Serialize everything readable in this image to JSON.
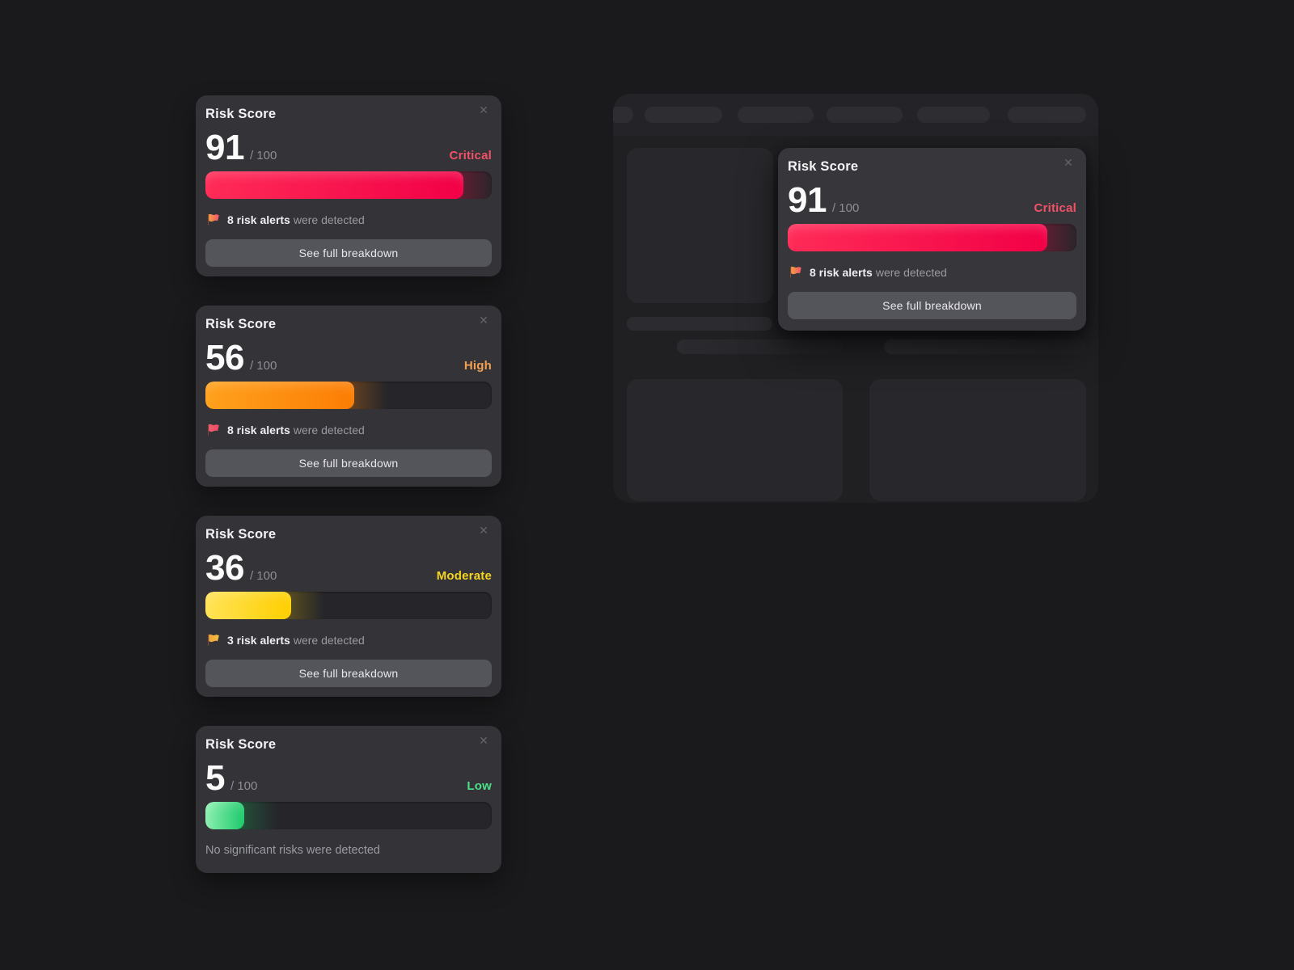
{
  "cards": [
    {
      "title": "Risk Score",
      "close": "✕",
      "score": "91",
      "denominator": "/ 100",
      "severity": "Critical",
      "severity_color": "#f25268",
      "bar": {
        "fill_percent": 90,
        "gradient": [
          "#ff2b57",
          "#f20046"
        ],
        "glow": "rgba(244,10,70,0.32)"
      },
      "alert": {
        "flag_colors": [
          "#f59e42",
          "#f4566c"
        ],
        "bold": "8 risk alerts",
        "rest": "were detected"
      },
      "button": "See full breakdown"
    },
    {
      "title": "Risk Score",
      "close": "✕",
      "score": "56",
      "denominator": "/ 100",
      "severity": "High",
      "severity_color": "#f2a04f",
      "bar": {
        "fill_percent": 52,
        "gradient": [
          "#ffa11c",
          "#fb7d04"
        ],
        "glow": "rgba(251,125,4,0.35)"
      },
      "alert": {
        "flag_colors": [
          "#f25f6d",
          "#ee4a63"
        ],
        "bold": "8 risk alerts",
        "rest": "were detected"
      },
      "button": "See full breakdown"
    },
    {
      "title": "Risk Score",
      "close": "✕",
      "score": "36",
      "denominator": "/ 100",
      "severity": "Moderate",
      "severity_color": "#f6d51f",
      "bar": {
        "fill_percent": 30,
        "gradient": [
          "#ffe357",
          "#fecf00"
        ],
        "glow": "rgba(254,207,0,0.28)"
      },
      "alert": {
        "flag_colors": [
          "#f0a33c",
          "#f3c043"
        ],
        "bold": "3 risk alerts",
        "rest": "were detected"
      },
      "button": "See full breakdown"
    },
    {
      "title": "Risk Score",
      "close": "✕",
      "score": "5",
      "denominator": "/ 100",
      "severity": "Low",
      "severity_color": "#4ce087",
      "bar": {
        "fill_percent": 13.5,
        "gradient": [
          "#8df0b1",
          "#1bc96a"
        ],
        "glow": "rgba(27,201,106,0.30)"
      },
      "message": "No significant risks were detected"
    }
  ],
  "popup": {
    "title": "Risk Score",
    "close": "✕",
    "score": "91",
    "denominator": "/ 100",
    "severity": "Critical",
    "severity_color": "#f25268",
    "bar": {
      "fill_percent": 90,
      "gradient": [
        "#ff2b57",
        "#f20046"
      ],
      "glow": "rgba(244,10,70,0.32)"
    },
    "alert": {
      "flag_colors": [
        "#f59e42",
        "#f4566c"
      ],
      "bold": "8 risk alerts",
      "rest": "were detected"
    },
    "button": "See full breakdown"
  }
}
